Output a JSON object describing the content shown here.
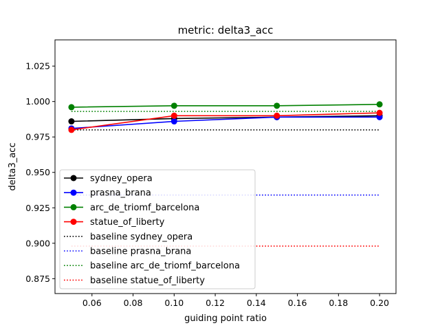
{
  "chart_data": {
    "type": "line",
    "title": "metric: delta3_acc",
    "xlabel": "guiding point ratio",
    "ylabel": "delta3_acc",
    "xlim": [
      0.042,
      0.208
    ],
    "ylim": [
      0.8645,
      1.0435
    ],
    "xticks": [
      0.06,
      0.08,
      0.1,
      0.12,
      0.14,
      0.16,
      0.18,
      0.2
    ],
    "xtick_labels": [
      "0.06",
      "0.08",
      "0.10",
      "0.12",
      "0.14",
      "0.16",
      "0.18",
      "0.20"
    ],
    "yticks": [
      0.875,
      0.9,
      0.925,
      0.95,
      0.975,
      1.0,
      1.025
    ],
    "ytick_labels": [
      "0.875",
      "0.900",
      "0.925",
      "0.950",
      "0.975",
      "1.000",
      "1.025"
    ],
    "grid": false,
    "legend_position": "lower-left",
    "x": [
      0.05,
      0.1,
      0.15,
      0.2
    ],
    "series": [
      {
        "name": "sydney_opera",
        "values": [
          0.986,
          0.988,
          0.989,
          0.99
        ],
        "color": "#000000",
        "style": "solid-marker"
      },
      {
        "name": "prasna_brana",
        "values": [
          0.981,
          0.986,
          0.989,
          0.989
        ],
        "color": "#0000ff",
        "style": "solid-marker"
      },
      {
        "name": "arc_de_triomf_barcelona",
        "values": [
          0.996,
          0.997,
          0.997,
          0.998
        ],
        "color": "#008000",
        "style": "solid-marker"
      },
      {
        "name": "statue_of_liberty",
        "values": [
          0.98,
          0.99,
          0.99,
          0.992
        ],
        "color": "#ff0000",
        "style": "solid-marker"
      }
    ],
    "baselines": [
      {
        "name": "baseline sydney_opera",
        "value": 0.98,
        "color": "#000000",
        "style": "dotted"
      },
      {
        "name": "baseline prasna_brana",
        "value": 0.934,
        "color": "#0000ff",
        "style": "dotted"
      },
      {
        "name": "baseline arc_de_triomf_barcelona",
        "value": 0.993,
        "color": "#008000",
        "style": "dotted"
      },
      {
        "name": "baseline statue_of_liberty",
        "value": 0.898,
        "color": "#ff0000",
        "style": "dotted"
      }
    ]
  }
}
